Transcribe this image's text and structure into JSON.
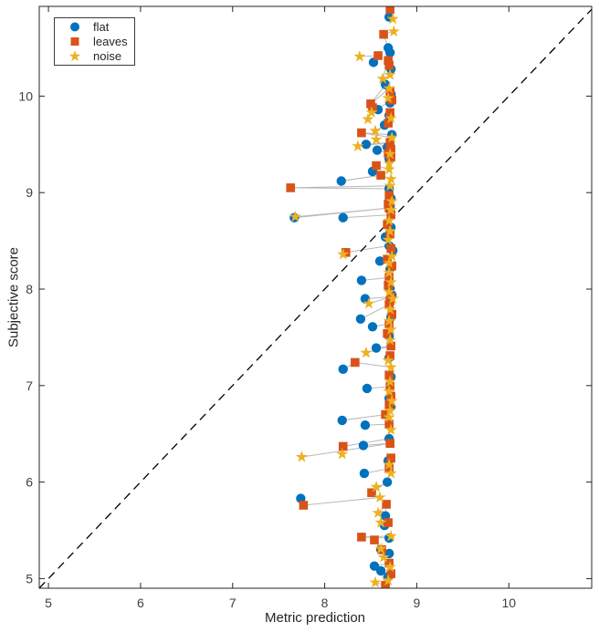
{
  "figure": {
    "background": "#ffffff"
  },
  "axes": {
    "axis_color": "#262626",
    "tick_label_color": "#404040",
    "tick_length": 6,
    "xticks": [
      5,
      6,
      7,
      8,
      9,
      10
    ],
    "yticks": [
      5,
      6,
      7,
      8,
      9,
      10
    ]
  },
  "chart_data": {
    "type": "scatter",
    "title": "",
    "xlabel": "Metric prediction",
    "ylabel": "Subjective score",
    "xlim": [
      4.9,
      10.9
    ],
    "ylim": [
      4.9,
      10.93
    ],
    "grid": false,
    "legend_position": "top-left",
    "identity_line": {
      "style": "dashed",
      "color": "#000000",
      "from": [
        4.9,
        4.9
      ],
      "to": [
        10.9,
        10.9
      ]
    },
    "connector_color": "#b8b8b8",
    "series": [
      {
        "name": "flat",
        "marker": "circle",
        "color": "#0072BD"
      },
      {
        "name": "leaves",
        "marker": "square",
        "color": "#D95319"
      },
      {
        "name": "noise",
        "marker": "star",
        "color": "#EDB120"
      }
    ],
    "groups": [
      {
        "flat": [
          8.7,
          10.82
        ],
        "leaves": [
          8.71,
          10.9
        ],
        "noise": [
          8.74,
          10.8
        ]
      },
      {
        "flat": [
          8.69,
          10.5
        ],
        "leaves": [
          8.64,
          10.64
        ],
        "noise": [
          8.75,
          10.67
        ]
      },
      {
        "flat": [
          8.53,
          10.35
        ],
        "leaves": [
          8.58,
          10.42
        ],
        "noise": [
          8.38,
          10.41
        ]
      },
      {
        "flat": [
          8.71,
          10.45
        ],
        "leaves": [
          8.69,
          10.37
        ],
        "noise": [
          8.63,
          10.18
        ]
      },
      {
        "flat": [
          8.72,
          10.28
        ],
        "leaves": [
          8.7,
          10.32
        ],
        "noise": [
          8.71,
          10.22
        ]
      },
      {
        "flat": [
          8.66,
          10.12
        ],
        "leaves": [
          8.5,
          9.92
        ],
        "noise": [
          8.7,
          10.08
        ]
      },
      {
        "flat": [
          8.72,
          10.02
        ],
        "leaves": [
          8.71,
          10.05
        ],
        "noise": [
          8.69,
          9.98
        ]
      },
      {
        "flat": [
          8.71,
          9.93
        ],
        "leaves": [
          8.73,
          9.96
        ],
        "noise": [
          8.51,
          9.83
        ]
      },
      {
        "flat": [
          8.58,
          9.86
        ],
        "leaves": [
          8.52,
          9.88
        ],
        "noise": [
          8.47,
          9.76
        ]
      },
      {
        "flat": [
          8.7,
          9.8
        ],
        "leaves": [
          8.71,
          9.83
        ],
        "noise": [
          8.72,
          9.77
        ]
      },
      {
        "flat": [
          8.65,
          9.7
        ],
        "leaves": [
          8.69,
          9.72
        ],
        "noise": [
          8.55,
          9.64
        ]
      },
      {
        "flat": [
          8.73,
          9.6
        ],
        "leaves": [
          8.4,
          9.62
        ],
        "noise": [
          8.73,
          9.57
        ]
      },
      {
        "flat": [
          8.45,
          9.5
        ],
        "leaves": [
          8.71,
          9.52
        ],
        "noise": [
          8.36,
          9.48
        ]
      },
      {
        "flat": [
          8.57,
          9.44
        ],
        "leaves": [
          8.69,
          9.41
        ],
        "noise": [
          8.56,
          9.55
        ]
      },
      {
        "flat": [
          8.7,
          9.35
        ],
        "leaves": [
          8.72,
          9.37
        ],
        "noise": [
          8.7,
          9.3
        ]
      },
      {
        "flat": [
          8.68,
          9.47
        ],
        "leaves": [
          8.72,
          9.45
        ],
        "noise": [
          8.71,
          9.4
        ]
      },
      {
        "flat": [
          8.52,
          9.22
        ],
        "leaves": [
          8.56,
          9.28
        ],
        "noise": [
          8.7,
          9.24
        ]
      },
      {
        "flat": [
          8.18,
          9.12
        ],
        "leaves": [
          8.61,
          9.18
        ],
        "noise": [
          8.72,
          9.14
        ]
      },
      {
        "flat": [
          8.7,
          9.04
        ],
        "leaves": [
          7.63,
          9.05
        ],
        "noise": [
          8.71,
          9.07
        ]
      },
      {
        "flat": [
          8.72,
          8.94
        ],
        "leaves": [
          8.7,
          8.97
        ],
        "noise": [
          8.73,
          8.91
        ]
      },
      {
        "flat": [
          8.71,
          8.86
        ],
        "leaves": [
          8.69,
          8.88
        ],
        "noise": [
          8.72,
          8.82
        ]
      },
      {
        "flat": [
          7.67,
          8.74
        ],
        "leaves": [
          8.7,
          8.84
        ],
        "noise": [
          7.68,
          8.75
        ]
      },
      {
        "flat": [
          8.2,
          8.74
        ],
        "leaves": [
          8.72,
          8.77
        ],
        "noise": [
          8.7,
          8.71
        ]
      },
      {
        "flat": [
          8.72,
          8.64
        ],
        "leaves": [
          8.68,
          8.67
        ],
        "noise": [
          8.71,
          8.6
        ]
      },
      {
        "flat": [
          8.66,
          8.54
        ],
        "leaves": [
          8.71,
          8.57
        ],
        "noise": [
          8.69,
          8.51
        ]
      },
      {
        "flat": [
          8.7,
          8.45
        ],
        "leaves": [
          8.23,
          8.38
        ],
        "noise": [
          8.2,
          8.36
        ]
      },
      {
        "flat": [
          8.74,
          8.4
        ],
        "leaves": [
          8.72,
          8.42
        ],
        "noise": [
          8.73,
          8.34
        ]
      },
      {
        "flat": [
          8.6,
          8.29
        ],
        "leaves": [
          8.68,
          8.31
        ],
        "noise": [
          8.7,
          8.27
        ]
      },
      {
        "flat": [
          8.71,
          8.21
        ],
        "leaves": [
          8.73,
          8.24
        ],
        "noise": [
          8.7,
          8.17
        ]
      },
      {
        "flat": [
          8.4,
          8.09
        ],
        "leaves": [
          8.7,
          8.12
        ],
        "noise": [
          8.72,
          8.07
        ]
      },
      {
        "flat": [
          8.71,
          8.01
        ],
        "leaves": [
          8.69,
          8.04
        ],
        "noise": [
          8.7,
          7.97
        ]
      },
      {
        "flat": [
          8.73,
          7.94
        ],
        "leaves": [
          8.71,
          7.88
        ],
        "noise": [
          8.74,
          7.9
        ]
      },
      {
        "flat": [
          8.44,
          7.9
        ],
        "leaves": [
          8.72,
          7.92
        ],
        "noise": [
          8.48,
          7.85
        ]
      },
      {
        "flat": [
          8.39,
          7.69
        ],
        "leaves": [
          8.7,
          7.84
        ],
        "noise": [
          8.71,
          7.79
        ]
      },
      {
        "flat": [
          8.72,
          7.71
        ],
        "leaves": [
          8.73,
          7.74
        ],
        "noise": [
          8.7,
          7.67
        ]
      },
      {
        "flat": [
          8.52,
          7.61
        ],
        "leaves": [
          8.7,
          7.64
        ],
        "noise": [
          8.72,
          7.58
        ]
      },
      {
        "flat": [
          8.7,
          7.51
        ],
        "leaves": [
          8.68,
          7.54
        ],
        "noise": [
          8.71,
          7.47
        ]
      },
      {
        "flat": [
          8.56,
          7.39
        ],
        "leaves": [
          8.72,
          7.41
        ],
        "noise": [
          8.45,
          7.34
        ]
      },
      {
        "flat": [
          8.7,
          7.29
        ],
        "leaves": [
          8.71,
          7.31
        ],
        "noise": [
          8.69,
          7.26
        ]
      },
      {
        "flat": [
          8.2,
          7.17
        ],
        "leaves": [
          8.33,
          7.24
        ],
        "noise": [
          8.72,
          7.19
        ]
      },
      {
        "flat": [
          8.72,
          7.09
        ],
        "leaves": [
          8.7,
          7.11
        ],
        "noise": [
          8.71,
          7.04
        ]
      },
      {
        "flat": [
          8.46,
          6.97
        ],
        "leaves": [
          8.71,
          6.99
        ],
        "noise": [
          8.7,
          6.94
        ]
      },
      {
        "flat": [
          8.7,
          6.87
        ],
        "leaves": [
          8.72,
          6.89
        ],
        "noise": [
          8.73,
          6.84
        ]
      },
      {
        "flat": [
          8.72,
          6.78
        ],
        "leaves": [
          8.7,
          6.8
        ],
        "noise": [
          8.71,
          6.74
        ]
      },
      {
        "flat": [
          8.19,
          6.64
        ],
        "leaves": [
          8.66,
          6.7
        ],
        "noise": [
          8.7,
          6.67
        ]
      },
      {
        "flat": [
          8.44,
          6.59
        ],
        "leaves": [
          8.7,
          6.6
        ],
        "noise": [
          8.72,
          6.54
        ]
      },
      {
        "flat": [
          8.7,
          6.45
        ],
        "leaves": [
          8.2,
          6.37
        ],
        "noise": [
          8.19,
          6.29
        ]
      },
      {
        "flat": [
          8.42,
          6.38
        ],
        "leaves": [
          8.71,
          6.4
        ],
        "noise": [
          7.75,
          6.26
        ]
      },
      {
        "flat": [
          8.69,
          6.22
        ],
        "leaves": [
          8.72,
          6.25
        ],
        "noise": [
          8.7,
          6.18
        ]
      },
      {
        "flat": [
          8.43,
          6.09
        ],
        "leaves": [
          8.7,
          6.14
        ],
        "noise": [
          8.72,
          6.09
        ]
      },
      {
        "flat": [
          8.68,
          6.0
        ],
        "leaves": [
          8.51,
          5.89
        ],
        "noise": [
          8.56,
          5.95
        ]
      },
      {
        "flat": [
          7.74,
          5.83
        ],
        "leaves": [
          7.77,
          5.76
        ],
        "noise": [
          8.6,
          5.84
        ]
      },
      {
        "flat": [
          8.66,
          5.65
        ],
        "leaves": [
          8.67,
          5.77
        ],
        "noise": [
          8.58,
          5.68
        ]
      },
      {
        "flat": [
          8.65,
          5.55
        ],
        "leaves": [
          8.69,
          5.58
        ],
        "noise": [
          8.61,
          5.58
        ]
      },
      {
        "flat": [
          8.7,
          5.42
        ],
        "leaves": [
          8.4,
          5.43
        ],
        "noise": [
          8.72,
          5.44
        ]
      },
      {
        "flat": [
          8.61,
          5.3
        ],
        "leaves": [
          8.54,
          5.4
        ],
        "noise": [
          8.61,
          5.31
        ]
      },
      {
        "flat": [
          8.7,
          5.26
        ],
        "leaves": [
          8.62,
          5.3
        ],
        "noise": [
          8.64,
          5.22
        ]
      },
      {
        "flat": [
          8.54,
          5.13
        ],
        "leaves": [
          8.7,
          5.16
        ],
        "noise": [
          8.71,
          5.12
        ]
      },
      {
        "flat": [
          8.61,
          5.08
        ],
        "leaves": [
          8.66,
          4.93
        ],
        "noise": [
          8.55,
          4.96
        ]
      },
      {
        "flat": [
          8.69,
          5.02
        ],
        "leaves": [
          8.72,
          5.05
        ],
        "noise": [
          8.69,
          4.98
        ]
      }
    ]
  }
}
